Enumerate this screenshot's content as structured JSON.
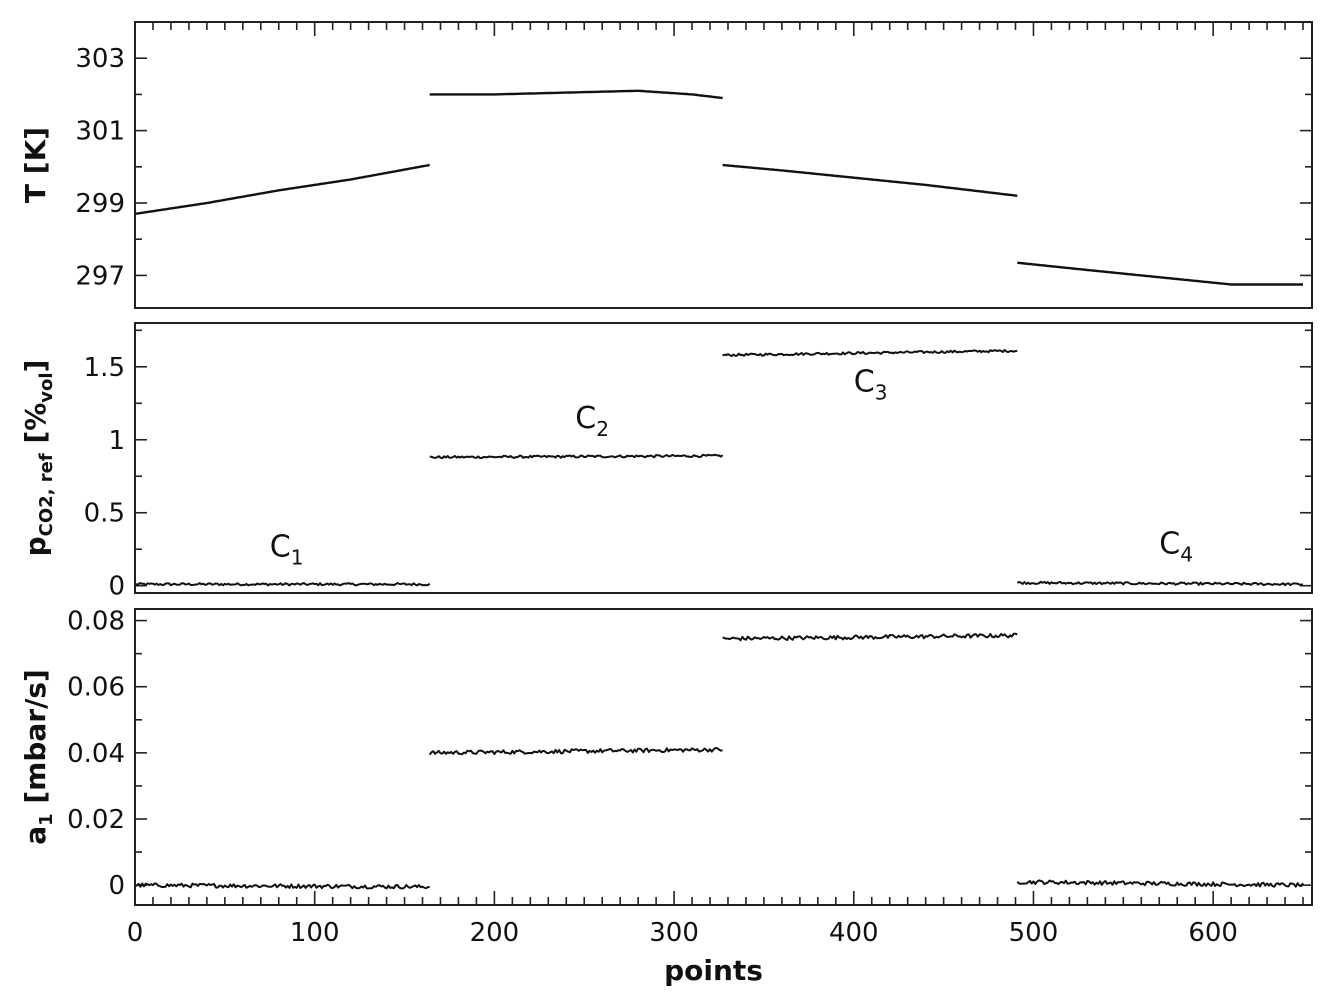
{
  "chart_data": [
    {
      "type": "line",
      "id": "temperature",
      "ylabel_main": "T [K]",
      "xlim": [
        0,
        655
      ],
      "ylim": [
        296.1,
        304.0
      ],
      "yticks": [
        297,
        299,
        301,
        303
      ],
      "ytick_labels": [
        "297",
        "299",
        "301",
        "303"
      ],
      "noise": 0.0,
      "segments": [
        {
          "x": [
            0,
            40,
            80,
            120,
            164
          ],
          "y": [
            298.7,
            299.0,
            299.35,
            299.65,
            300.05
          ]
        },
        {
          "x": [
            164,
            200,
            240,
            280,
            310,
            327
          ],
          "y": [
            302.0,
            302.0,
            302.05,
            302.1,
            302.0,
            301.9
          ]
        },
        {
          "x": [
            327,
            360,
            400,
            440,
            491
          ],
          "y": [
            300.05,
            299.9,
            299.7,
            299.5,
            299.2
          ]
        },
        {
          "x": [
            491,
            530,
            570,
            610,
            650
          ],
          "y": [
            297.35,
            297.15,
            296.95,
            296.75,
            296.75
          ]
        }
      ],
      "annotations": []
    },
    {
      "type": "line",
      "id": "pco2",
      "ylabel_main": "p",
      "ylabel_sub": "CO2, ref",
      "ylabel_unit_open": " [%",
      "ylabel_unit_sub": "vol",
      "ylabel_unit_close": "]",
      "xlim": [
        0,
        655
      ],
      "ylim": [
        -0.05,
        1.8
      ],
      "yticks": [
        0,
        0.5,
        1,
        1.5
      ],
      "ytick_labels": [
        "0",
        "0.5",
        "1",
        "1.5"
      ],
      "noise": 0.008,
      "segments": [
        {
          "x": [
            0,
            164
          ],
          "y": [
            0.01,
            0.01
          ]
        },
        {
          "x": [
            164,
            327
          ],
          "y": [
            0.88,
            0.89
          ]
        },
        {
          "x": [
            327,
            491
          ],
          "y": [
            1.58,
            1.61
          ]
        },
        {
          "x": [
            491,
            650
          ],
          "y": [
            0.02,
            0.01
          ]
        }
      ],
      "annotations": [
        {
          "main": "C",
          "sub": "1",
          "x": 75,
          "y": 0.2
        },
        {
          "main": "C",
          "sub": "2",
          "x": 245,
          "y": 1.08
        },
        {
          "main": "C",
          "sub": "3",
          "x": 400,
          "y": 1.33
        },
        {
          "main": "C",
          "sub": "4",
          "x": 570,
          "y": 0.22
        }
      ]
    },
    {
      "type": "line",
      "id": "a1",
      "ylabel_main": "a",
      "ylabel_sub": "1",
      "ylabel_rest": " [mbar/s]",
      "xlim": [
        0,
        655
      ],
      "ylim": [
        -0.006,
        0.0835
      ],
      "yticks": [
        0,
        0.02,
        0.04,
        0.06,
        0.08
      ],
      "ytick_labels": [
        "0",
        "0.02",
        "0.04",
        "0.06",
        "0.08"
      ],
      "noise": 0.0006,
      "segments": [
        {
          "x": [
            0,
            164
          ],
          "y": [
            0.0,
            -0.0005
          ]
        },
        {
          "x": [
            164,
            327
          ],
          "y": [
            0.04,
            0.041
          ]
        },
        {
          "x": [
            327,
            491
          ],
          "y": [
            0.0745,
            0.0755
          ]
        },
        {
          "x": [
            491,
            650
          ],
          "y": [
            0.001,
            0.0
          ]
        }
      ],
      "annotations": []
    }
  ],
  "xaxis": {
    "label": "points",
    "xticks": [
      0,
      100,
      200,
      300,
      400,
      500,
      600
    ],
    "xtick_labels": [
      "0",
      "100",
      "200",
      "300",
      "400",
      "500",
      "600"
    ]
  }
}
